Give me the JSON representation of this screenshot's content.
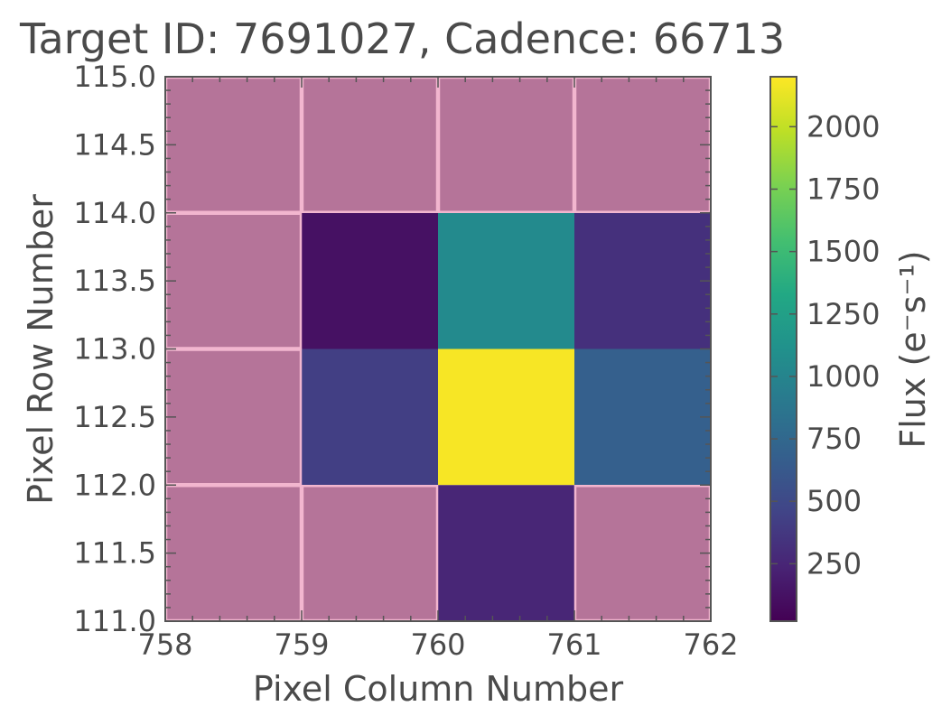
{
  "chart_data": {
    "type": "heatmap",
    "title": "Target ID: 7691027, Cadence: 66713",
    "xlabel": "Pixel Column Number",
    "ylabel": "Pixel Row Number",
    "xlim": [
      758,
      762
    ],
    "ylim": [
      111.0,
      115.0
    ],
    "x_ticks": [
      "758",
      "759",
      "760",
      "761",
      "762"
    ],
    "y_ticks": [
      "111.0",
      "111.5",
      "112.0",
      "112.5",
      "113.0",
      "113.5",
      "114.0",
      "114.5",
      "115.0"
    ],
    "columns": [
      758,
      759,
      760,
      761
    ],
    "rows": [
      114,
      113,
      112,
      111
    ],
    "flux_values": [
      [
        null,
        null,
        null,
        null
      ],
      [
        null,
        120,
        1050,
        320
      ],
      [
        null,
        420,
        2180,
        680
      ],
      [
        null,
        null,
        250,
        null
      ]
    ],
    "masked_color": "#b57499",
    "colormap": "viridis",
    "colorbar": {
      "label": "Flux (e⁻s⁻¹)",
      "min": 20,
      "max": 2200,
      "ticks": [
        "250",
        "500",
        "750",
        "1000",
        "1250",
        "1500",
        "1750",
        "2000"
      ]
    }
  }
}
